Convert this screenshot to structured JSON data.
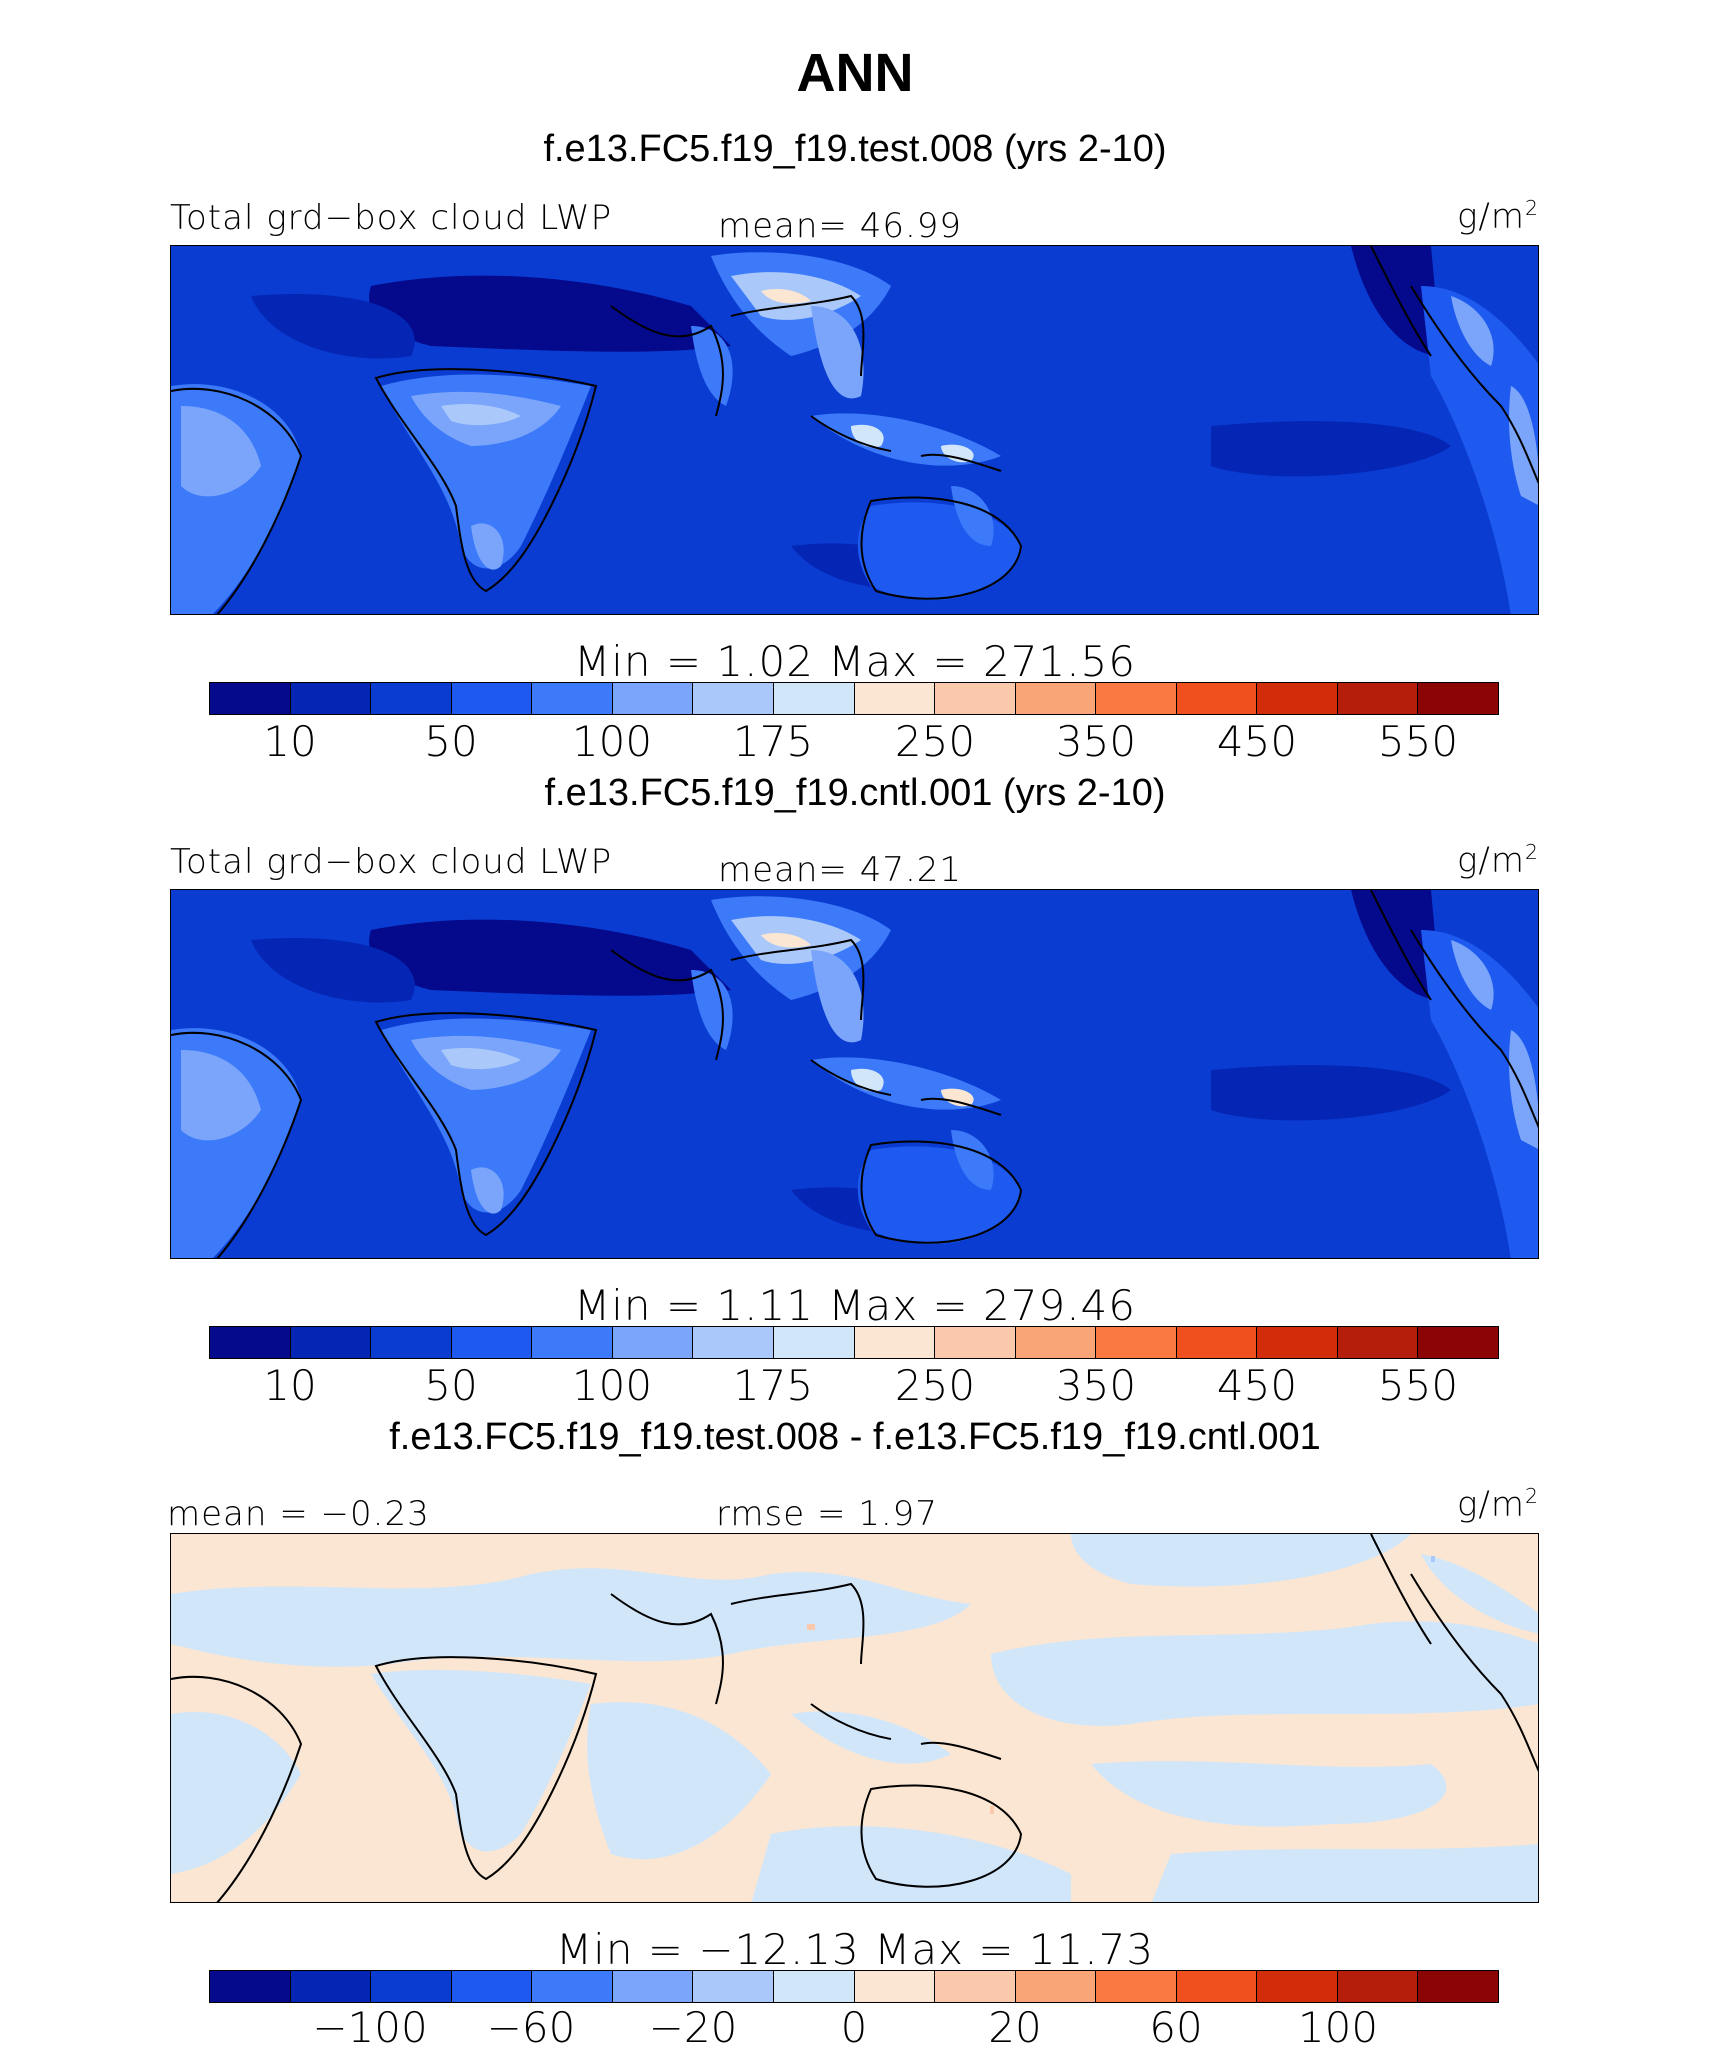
{
  "page": {
    "title": "ANN"
  },
  "panels": [
    {
      "title": "f.e13.FC5.f19_f19.test.008 (yrs 2-10)",
      "left_label": "Total grd−box cloud LWP",
      "center_label": "mean=  46.99",
      "units": "g/m",
      "units_sup": "2",
      "minmax": "Min =   1.02 Max = 271.56",
      "colorbar": {
        "colors": [
          "#050a8c",
          "#0525b4",
          "#0a3cd2",
          "#1e5af0",
          "#3c7afa",
          "#7aa5fa",
          "#aac8fa",
          "#d2e6fa",
          "#fae6d2",
          "#fac8aa",
          "#faa578",
          "#fa7841",
          "#f0501e",
          "#d22d0a",
          "#b41e0a",
          "#8c0505"
        ],
        "tick_labels": [
          "10",
          "50",
          "100",
          "175",
          "250",
          "350",
          "450",
          "550"
        ]
      }
    },
    {
      "title": "f.e13.FC5.f19_f19.cntl.001 (yrs 2-10)",
      "left_label": "Total grd−box cloud LWP",
      "center_label": "mean=  47.21",
      "units": "g/m",
      "units_sup": "2",
      "minmax": "Min =   1.11 Max = 279.46",
      "colorbar": {
        "colors": [
          "#050a8c",
          "#0525b4",
          "#0a3cd2",
          "#1e5af0",
          "#3c7afa",
          "#7aa5fa",
          "#aac8fa",
          "#d2e6fa",
          "#fae6d2",
          "#fac8aa",
          "#faa578",
          "#fa7841",
          "#f0501e",
          "#d22d0a",
          "#b41e0a",
          "#8c0505"
        ],
        "tick_labels": [
          "10",
          "50",
          "100",
          "175",
          "250",
          "350",
          "450",
          "550"
        ]
      }
    },
    {
      "title": "f.e13.FC5.f19_f19.test.008 - f.e13.FC5.f19_f19.cntl.001",
      "left_label": "mean =  −0.23",
      "center_label": "rmse =   1.97",
      "units": "g/m",
      "units_sup": "2",
      "minmax": "Min = −12.13 Max =  11.73",
      "colorbar": {
        "colors": [
          "#050a8c",
          "#0525b4",
          "#0a3cd2",
          "#1e5af0",
          "#3c7afa",
          "#7aa5fa",
          "#aac8fa",
          "#d2e6fa",
          "#fae6d2",
          "#fac8aa",
          "#faa578",
          "#fa7841",
          "#f0501e",
          "#d22d0a",
          "#b41e0a",
          "#8c0505"
        ],
        "tick_labels": [
          "−100",
          "−60",
          "−20",
          "0",
          "20",
          "60",
          "100"
        ]
      }
    }
  ]
}
